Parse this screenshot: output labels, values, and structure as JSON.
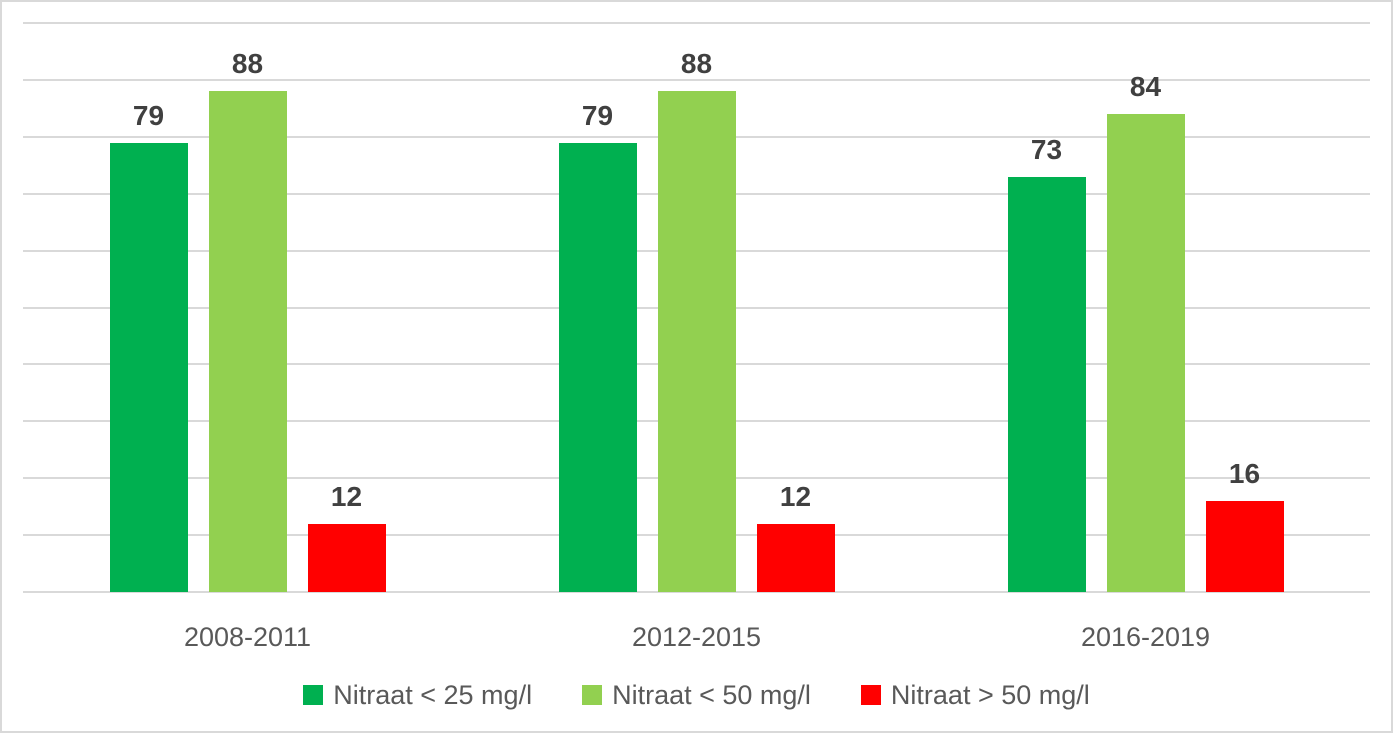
{
  "chart_data": {
    "type": "bar",
    "categories": [
      "2008-2011",
      "2012-2015",
      "2016-2019"
    ],
    "series": [
      {
        "name": "Nitraat < 25 mg/l",
        "color": "#00B050",
        "values": [
          79,
          79,
          73
        ]
      },
      {
        "name": "Nitraat < 50 mg/l",
        "color": "#92D050",
        "values": [
          88,
          88,
          84
        ]
      },
      {
        "name": "Nitraat > 50 mg/l",
        "color": "#FF0000",
        "values": [
          12,
          12,
          16
        ]
      }
    ],
    "title": "",
    "xlabel": "",
    "ylabel": "",
    "ylim": [
      0,
      100
    ],
    "grid": true,
    "gridline_step": 10,
    "y_tick_labels_visible": false,
    "legend_position": "bottom",
    "data_labels": true
  },
  "style": {
    "background": "#FFFFFF",
    "border_color": "#D9D9D9",
    "gridline_color": "#D9D9D9",
    "axis_line_color": "#D9D9D9",
    "data_label_color": "#404040",
    "axis_label_color": "#595959"
  }
}
